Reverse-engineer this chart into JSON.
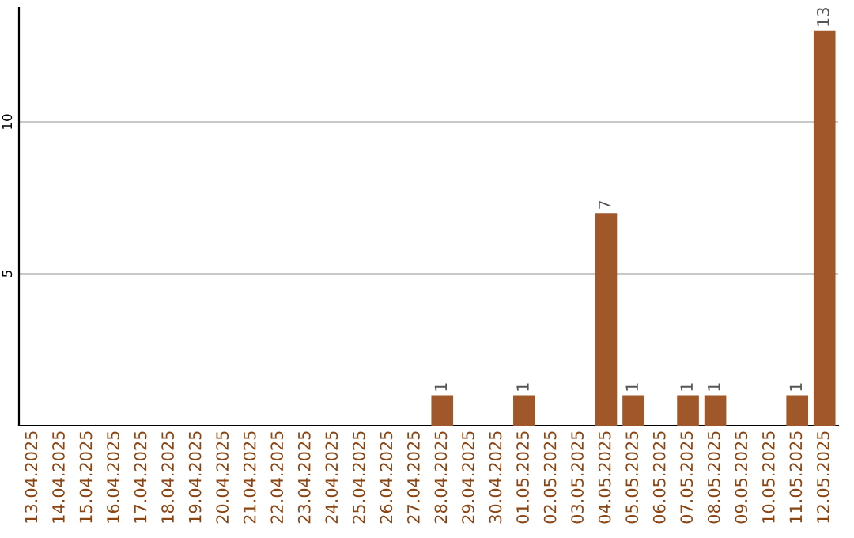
{
  "chart_data": {
    "type": "bar",
    "categories": [
      "13.04.2025",
      "14.04.2025",
      "15.04.2025",
      "16.04.2025",
      "17.04.2025",
      "18.04.2025",
      "19.04.2025",
      "20.04.2025",
      "21.04.2025",
      "22.04.2025",
      "23.04.2025",
      "24.04.2025",
      "25.04.2025",
      "26.04.2025",
      "27.04.2025",
      "28.04.2025",
      "29.04.2025",
      "30.04.2025",
      "01.05.2025",
      "02.05.2025",
      "03.05.2025",
      "04.05.2025",
      "05.05.2025",
      "06.05.2025",
      "07.05.2025",
      "08.05.2025",
      "09.05.2025",
      "10.05.2025",
      "11.05.2025",
      "12.05.2025"
    ],
    "values": [
      0,
      0,
      0,
      0,
      0,
      0,
      0,
      0,
      0,
      0,
      0,
      0,
      0,
      0,
      0,
      1,
      0,
      0,
      1,
      0,
      0,
      7,
      1,
      0,
      1,
      1,
      0,
      0,
      1,
      13
    ],
    "value_labels": [
      null,
      null,
      null,
      null,
      null,
      null,
      null,
      null,
      null,
      null,
      null,
      null,
      null,
      null,
      null,
      "1",
      null,
      null,
      "1",
      null,
      null,
      "7",
      "1",
      null,
      "1",
      "1",
      null,
      null,
      "1",
      "13"
    ],
    "color": "#a0572a",
    "ylim": [
      0,
      13.75
    ],
    "yticks": [
      5,
      10
    ],
    "grid": "y"
  }
}
